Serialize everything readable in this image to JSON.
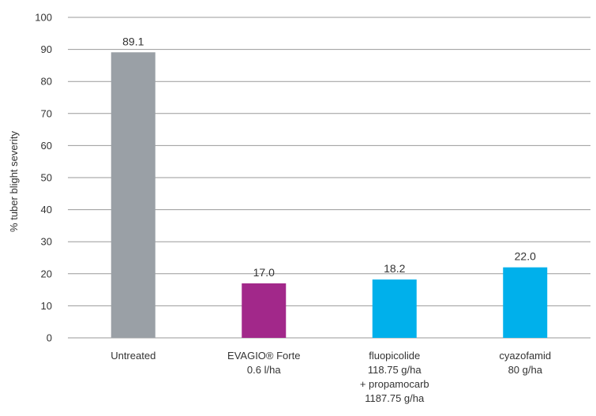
{
  "chart_data": {
    "type": "bar",
    "ylabel": "% tuber blight severity",
    "ylim": [
      0,
      100
    ],
    "yticks": [
      0,
      10,
      20,
      30,
      40,
      50,
      60,
      70,
      80,
      90,
      100
    ],
    "grid": true,
    "categories": [
      [
        "Untreated"
      ],
      [
        "EVAGIO® Forte",
        "0.6 l/ha"
      ],
      [
        "fluopicolide",
        "118.75 g/ha",
        "+ propamocarb",
        "1187.75 g/ha"
      ],
      [
        "cyazofamid",
        "80 g/ha"
      ]
    ],
    "values": [
      89.1,
      17.0,
      18.2,
      22.0
    ],
    "value_labels": [
      "89.1",
      "17.0",
      "18.2",
      "22.0"
    ],
    "colors": [
      "#9aa0a6",
      "#a2288a",
      "#00b0eb",
      "#00b0eb"
    ]
  }
}
